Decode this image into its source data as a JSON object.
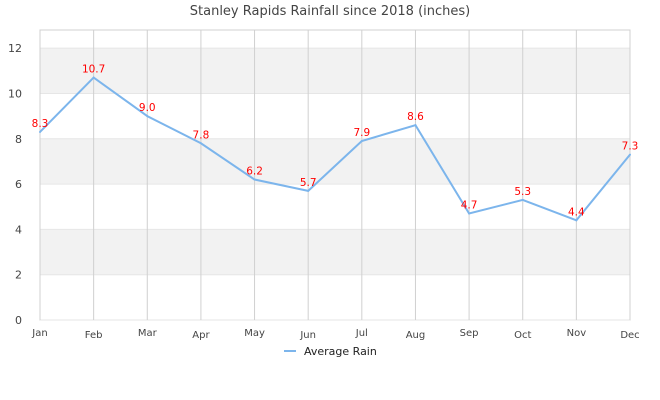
{
  "colors": {
    "line": "#7cb5ec",
    "label": "#ff0000",
    "band": "#f2f2f2",
    "grid": "#d0d0d0"
  },
  "chart_data": {
    "type": "line",
    "title": "Stanley Rapids Rainfall since 2018 (inches)",
    "xlabel": "",
    "ylabel": "",
    "categories": [
      "Jan",
      "Feb",
      "Mar",
      "Apr",
      "May",
      "Jun",
      "Jul",
      "Aug",
      "Sep",
      "Oct",
      "Nov",
      "Dec"
    ],
    "series": [
      {
        "name": "Average Rain",
        "values": [
          8.3,
          10.7,
          9.0,
          7.8,
          6.2,
          5.7,
          7.9,
          8.6,
          4.7,
          5.3,
          4.4,
          7.3
        ],
        "labels": [
          "8.3",
          "10.7",
          "9.0",
          "7.8",
          "6.2",
          "5.7",
          "7.9",
          "8.6",
          "4.7",
          "5.3",
          "4.4",
          "7.3"
        ]
      }
    ],
    "yticks": [
      "0",
      "2",
      "4",
      "6",
      "8",
      "10",
      "12"
    ],
    "ylim": [
      0,
      12.8
    ],
    "grid": true,
    "legend": "bottom-center"
  }
}
